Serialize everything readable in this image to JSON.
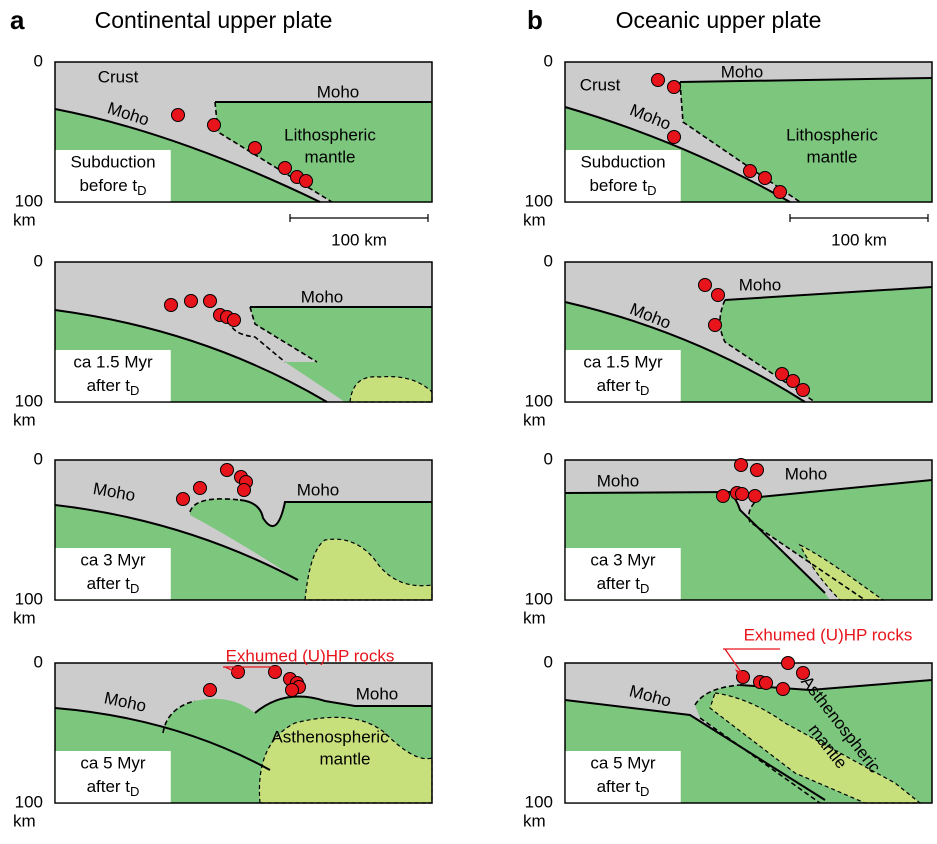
{
  "panels": [
    {
      "letter": "a",
      "title": "Continental upper plate",
      "rows": [
        {
          "depth_top": "0",
          "depth_bottom": "100",
          "depth_unit": "km",
          "caption": [
            "Subduction",
            "before t"
          ],
          "caption_sub": "D",
          "labels": [
            "Crust",
            "Moho",
            "Moho",
            "Lithospheric",
            "mantle"
          ],
          "scale_bar": "100 km"
        },
        {
          "depth_top": "0",
          "depth_bottom": "100",
          "depth_unit": "km",
          "caption": [
            "ca 1.5 Myr",
            "after t"
          ],
          "caption_sub": "D",
          "labels": [
            "Moho"
          ]
        },
        {
          "depth_top": "0",
          "depth_bottom": "100",
          "depth_unit": "km",
          "caption": [
            "ca 3 Myr",
            "after t"
          ],
          "caption_sub": "D",
          "labels": [
            "Moho",
            "Moho"
          ]
        },
        {
          "depth_top": "0",
          "depth_bottom": "100",
          "depth_unit": "km",
          "caption": [
            "ca 5 Myr",
            "after t"
          ],
          "caption_sub": "D",
          "labels": [
            "Moho",
            "Moho",
            "Asthenospheric",
            "mantle"
          ],
          "annotation": "Exhumed (U)HP rocks"
        }
      ]
    },
    {
      "letter": "b",
      "title": "Oceanic upper plate",
      "rows": [
        {
          "depth_top": "0",
          "depth_bottom": "100",
          "depth_unit": "km",
          "caption": [
            "Subduction",
            "before t"
          ],
          "caption_sub": "D",
          "labels": [
            "Crust",
            "Moho",
            "Moho",
            "Lithospheric",
            "mantle"
          ],
          "scale_bar": "100 km"
        },
        {
          "depth_top": "0",
          "depth_bottom": "100",
          "depth_unit": "km",
          "caption": [
            "ca 1.5 Myr",
            "after t"
          ],
          "caption_sub": "D",
          "labels": [
            "Moho",
            "Moho"
          ]
        },
        {
          "depth_top": "0",
          "depth_bottom": "100",
          "depth_unit": "km",
          "caption": [
            "ca 3 Myr",
            "after t"
          ],
          "caption_sub": "D",
          "labels": [
            "Moho",
            "Moho"
          ]
        },
        {
          "depth_top": "0",
          "depth_bottom": "100",
          "depth_unit": "km",
          "caption": [
            "ca 5 Myr",
            "after t"
          ],
          "caption_sub": "D",
          "labels": [
            "Moho",
            "Asthenospheric",
            "mantle"
          ],
          "annotation": "Exhumed (U)HP rocks"
        }
      ]
    }
  ]
}
